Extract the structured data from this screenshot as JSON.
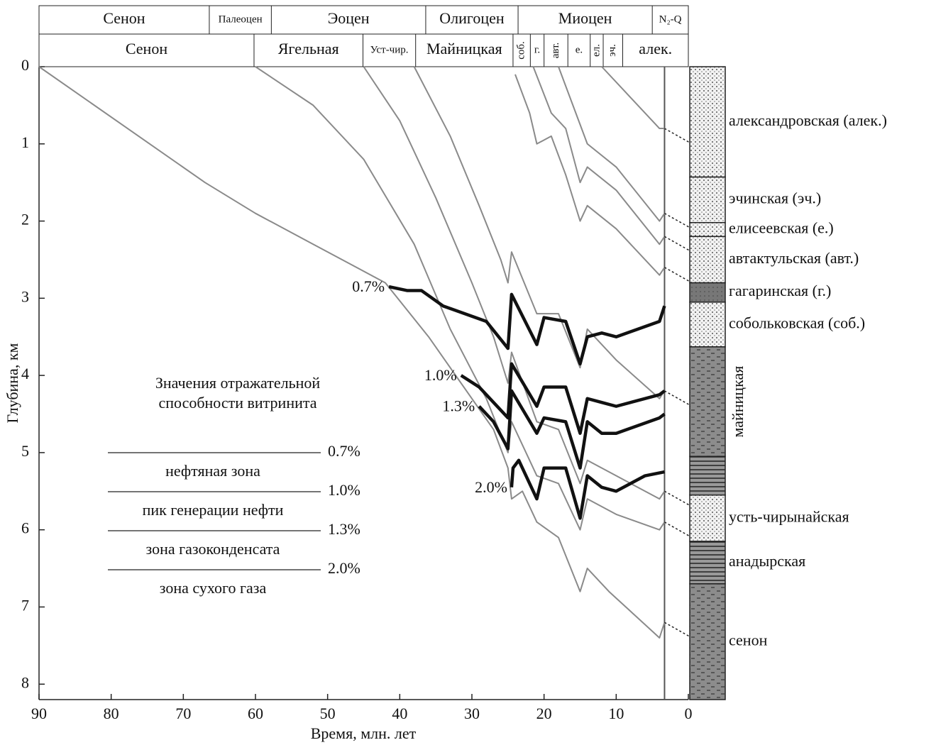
{
  "chart_data": {
    "type": "line",
    "xlabel": "Время, млн. лет",
    "ylabel": "Глубина, км",
    "xlim": [
      90,
      0
    ],
    "xticks": [
      90,
      80,
      70,
      60,
      50,
      40,
      30,
      20,
      10,
      0
    ],
    "ylim": [
      0,
      8.2
    ],
    "yticks": [
      0,
      1,
      2,
      3,
      4,
      5,
      6,
      7,
      8
    ],
    "periods": [
      {
        "name": "Сенон",
        "from": 90,
        "to": 66.4
      },
      {
        "name": "Палеоцен",
        "from": 66.4,
        "to": 57.8
      },
      {
        "name": "Эоцен",
        "from": 57.8,
        "to": 36.4
      },
      {
        "name": "Олигоцен",
        "from": 36.4,
        "to": 23.6
      },
      {
        "name": "Миоцен",
        "from": 23.6,
        "to": 5.0
      },
      {
        "name": "N₂-Q",
        "from": 5.0,
        "to": 0
      }
    ],
    "formations": [
      {
        "name": "Сенон",
        "from": 90,
        "to": 60.2,
        "vertical": false
      },
      {
        "name": "Ягельная",
        "from": 60.2,
        "to": 45.1,
        "vertical": false
      },
      {
        "name": "Уст-чир.",
        "from": 45.1,
        "to": 37.8,
        "vertical": false
      },
      {
        "name": "Майницкая",
        "from": 37.8,
        "to": 24.3,
        "vertical": false
      },
      {
        "name": "соб.",
        "from": 24.3,
        "to": 21.9,
        "vertical": true
      },
      {
        "name": "г.",
        "from": 21.9,
        "to": 20.0,
        "vertical": false
      },
      {
        "name": "авт.",
        "from": 20.0,
        "to": 16.7,
        "vertical": true
      },
      {
        "name": "е.",
        "from": 16.7,
        "to": 13.6,
        "vertical": false
      },
      {
        "name": "ел.",
        "from": 13.6,
        "to": 11.8,
        "vertical": true
      },
      {
        "name": "эч.",
        "from": 11.8,
        "to": 9.1,
        "vertical": true
      },
      {
        "name": "алек.",
        "from": 9.1,
        "to": 0,
        "vertical": false
      }
    ],
    "burial_color": "#8a8a8a",
    "burial_curves": [
      {
        "x": [
          90,
          67,
          60,
          52,
          42,
          36,
          27,
          25,
          24.5,
          23,
          21,
          18,
          15,
          14,
          11,
          4,
          3.3
        ],
        "y": [
          0,
          1.5,
          1.9,
          2.3,
          2.8,
          3.5,
          4.7,
          5.2,
          5.6,
          5.5,
          5.9,
          6.1,
          6.8,
          6.5,
          6.8,
          7.4,
          7.2
        ]
      },
      {
        "x": [
          60,
          52,
          45,
          38,
          33,
          28,
          25,
          24.5,
          21,
          18,
          15,
          14,
          10,
          4,
          3.3
        ],
        "y": [
          0,
          0.5,
          1.2,
          2.3,
          3.4,
          4.3,
          5.0,
          4.6,
          5.3,
          5.4,
          6.0,
          5.6,
          5.8,
          6.0,
          5.9
        ]
      },
      {
        "x": [
          45,
          40,
          35,
          30,
          27,
          25,
          24.5,
          21,
          18,
          15,
          14,
          10,
          4,
          3.3
        ],
        "y": [
          0,
          0.7,
          1.7,
          2.8,
          3.5,
          4.1,
          3.7,
          4.6,
          4.7,
          5.4,
          5.1,
          5.3,
          5.6,
          5.5
        ]
      },
      {
        "x": [
          38,
          33,
          29,
          26,
          25,
          24.5,
          21,
          18,
          15,
          14,
          10,
          4,
          3.3
        ],
        "y": [
          0,
          0.9,
          1.8,
          2.5,
          2.8,
          2.4,
          3.2,
          3.2,
          3.9,
          3.4,
          3.8,
          4.3,
          4.2
        ]
      },
      {
        "x": [
          24,
          22,
          21,
          19,
          17,
          15,
          14,
          10,
          4,
          3.3
        ],
        "y": [
          0.1,
          0.6,
          1.0,
          0.9,
          1.4,
          2.0,
          1.8,
          2.1,
          2.7,
          2.6
        ]
      },
      {
        "x": [
          21.5,
          19,
          17,
          15,
          14,
          10,
          4,
          3.3
        ],
        "y": [
          0,
          0.6,
          0.8,
          1.5,
          1.3,
          1.6,
          2.3,
          2.2
        ]
      },
      {
        "x": [
          18,
          16,
          14,
          10,
          4,
          3.3
        ],
        "y": [
          0,
          0.5,
          1.0,
          1.3,
          2.0,
          1.9
        ]
      },
      {
        "x": [
          12,
          8,
          4,
          3.3
        ],
        "y": [
          0,
          0.4,
          0.8,
          0.8
        ]
      }
    ],
    "unconformity_age": 3.3,
    "isoline_color": "#111111",
    "isolines": [
      {
        "label": "0.7%",
        "x": [
          41.5,
          39,
          37,
          34,
          28,
          25,
          24.5,
          21,
          20,
          17,
          15,
          14,
          12,
          10,
          4,
          3.3
        ],
        "y": [
          2.85,
          2.9,
          2.9,
          3.1,
          3.3,
          3.65,
          2.95,
          3.6,
          3.25,
          3.3,
          3.85,
          3.5,
          3.45,
          3.5,
          3.3,
          3.1
        ]
      },
      {
        "label": "1.0%",
        "x": [
          31.5,
          29,
          25,
          24.5,
          21,
          20,
          17,
          15,
          14,
          12,
          10,
          4,
          3.3
        ],
        "y": [
          4.0,
          4.15,
          4.55,
          3.85,
          4.4,
          4.15,
          4.15,
          4.75,
          4.3,
          4.35,
          4.4,
          4.25,
          4.2
        ]
      },
      {
        "label": "1.3%",
        "x": [
          29,
          27,
          25,
          24.5,
          21,
          20,
          17,
          15,
          14,
          12,
          10,
          4,
          3.3
        ],
        "y": [
          4.4,
          4.6,
          4.95,
          4.2,
          4.75,
          4.55,
          4.6,
          5.2,
          4.6,
          4.75,
          4.75,
          4.55,
          4.5
        ]
      },
      {
        "label": "2.0%",
        "x": [
          24.5,
          24.3,
          23.5,
          21,
          20,
          17,
          15,
          14,
          12,
          10,
          6,
          3.3
        ],
        "y": [
          5.45,
          5.2,
          5.1,
          5.6,
          5.2,
          5.2,
          5.85,
          5.3,
          5.45,
          5.5,
          5.3,
          5.25
        ]
      }
    ],
    "legend": {
      "title": [
        "Значения отражательной",
        "способности витринита"
      ],
      "levels": [
        "0.7%",
        "1.0%",
        "1.3%",
        "2.0%"
      ],
      "zones": [
        "нефтяная зона",
        "пик генерации нефти",
        "зона газоконденсата",
        "зона сухого газа"
      ]
    },
    "column": [
      {
        "name": "александровская (алек.)",
        "top": 0,
        "bottom": 1.43,
        "fill": "dots"
      },
      {
        "name": "эчинская (эч.)",
        "top": 1.43,
        "bottom": 2.02,
        "fill": "dots"
      },
      {
        "name": "елисеевская (е.)",
        "top": 2.02,
        "bottom": 2.2,
        "fill": "dots"
      },
      {
        "name": "автактульская (авт.)",
        "top": 2.2,
        "bottom": 2.8,
        "fill": "dots"
      },
      {
        "name": "гагаринская (г.)",
        "top": 2.8,
        "bottom": 3.05,
        "fill": "dark"
      },
      {
        "name": "собольковская (соб.)",
        "top": 3.05,
        "bottom": 3.63,
        "fill": "dots"
      },
      {
        "name": "майницкая",
        "top": 3.63,
        "bottom": 5.05,
        "fill": "dashes",
        "vertical": true
      },
      {
        "name": null,
        "top": 5.05,
        "bottom": 5.55,
        "fill": "stripes"
      },
      {
        "name": "усть-чирынайская",
        "top": 5.55,
        "bottom": 6.15,
        "fill": "dots"
      },
      {
        "name": "анадырская",
        "top": 6.15,
        "bottom": 6.7,
        "fill": "stripes"
      },
      {
        "name": "сенон",
        "top": 6.7,
        "bottom": 8.2,
        "fill": "dashes"
      }
    ]
  }
}
